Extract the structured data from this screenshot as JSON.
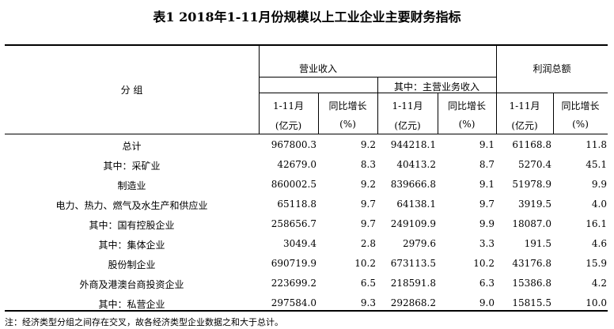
{
  "title": "表1 2018年1-11月份规模以上工业企业主要财务指标",
  "headers": {
    "group": "分 组",
    "revenue": "营业收入",
    "main_revenue": "其中：主营业务收入",
    "profit": "利润总额",
    "period": "1-11月",
    "growth": "同比增长",
    "unit_amount": "(亿元)",
    "unit_pct": "(%)"
  },
  "rows": [
    {
      "label": "总计",
      "v": [
        "967800.3",
        "9.2",
        "944218.1",
        "9.1",
        "61168.8",
        "11.8"
      ]
    },
    {
      "label": "其中：采矿业",
      "v": [
        "42679.0",
        "8.3",
        "40413.2",
        "8.7",
        "5270.4",
        "45.1"
      ]
    },
    {
      "label": "制造业",
      "v": [
        "860002.5",
        "9.2",
        "839666.8",
        "9.1",
        "51978.9",
        "9.9"
      ]
    },
    {
      "label": "电力、热力、燃气及水生产和供应业",
      "v": [
        "65118.8",
        "9.7",
        "64138.1",
        "9.7",
        "3919.5",
        "4.0"
      ]
    },
    {
      "label": "其中：国有控股企业",
      "v": [
        "258656.7",
        "9.7",
        "249109.9",
        "9.9",
        "18087.0",
        "16.1"
      ]
    },
    {
      "label": "其中：集体企业",
      "v": [
        "3049.4",
        "2.8",
        "2979.6",
        "3.3",
        "191.5",
        "4.6"
      ]
    },
    {
      "label": "股份制企业",
      "v": [
        "690719.9",
        "10.2",
        "673113.5",
        "10.2",
        "43176.8",
        "15.9"
      ]
    },
    {
      "label": "外商及港澳台商投资企业",
      "v": [
        "223699.2",
        "6.5",
        "218591.8",
        "6.3",
        "15386.8",
        "4.2"
      ]
    },
    {
      "label": "其中：私营企业",
      "v": [
        "297584.0",
        "9.3",
        "292868.2",
        "9.0",
        "15815.5",
        "10.0"
      ]
    }
  ],
  "note": "注：经济类型分组之间存在交叉，故各经济类型企业数据之和大于总计。"
}
